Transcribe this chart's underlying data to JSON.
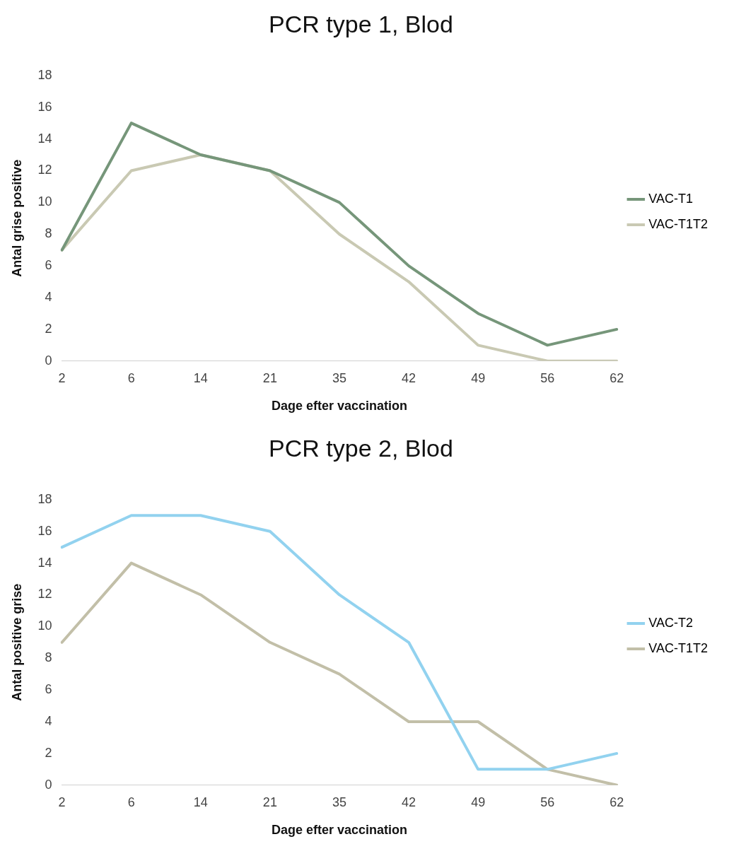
{
  "chart_data": [
    {
      "type": "line",
      "title": "PCR type 1, Blod",
      "xlabel": "Dage efter vaccination",
      "ylabel": "Antal grise positive",
      "categories": [
        "2",
        "6",
        "14",
        "21",
        "35",
        "42",
        "49",
        "56",
        "62"
      ],
      "series": [
        {
          "name": "VAC-T1",
          "color": "#76967a",
          "values": [
            7,
            15,
            13,
            12,
            10,
            6,
            3,
            1,
            2
          ]
        },
        {
          "name": "VAC-T1T2",
          "color": "#c9c9b3",
          "values": [
            7,
            12,
            13,
            12,
            8,
            5,
            1,
            0,
            0
          ]
        }
      ],
      "ylim": [
        0,
        18
      ],
      "yticks": [
        0,
        2,
        4,
        6,
        8,
        10,
        12,
        14,
        16,
        18
      ],
      "legend": "right",
      "marker": "none",
      "line_style": "solid"
    },
    {
      "type": "line",
      "title": "PCR type 2, Blod",
      "xlabel": "Dage efter vaccination",
      "ylabel": "Antal positive grise",
      "categories": [
        "2",
        "6",
        "14",
        "21",
        "35",
        "42",
        "49",
        "56",
        "62"
      ],
      "series": [
        {
          "name": "VAC-T2",
          "color": "#92d2ef",
          "values": [
            15,
            17,
            17,
            16,
            12,
            9,
            1,
            1,
            2
          ]
        },
        {
          "name": "VAC-T1T2",
          "color": "#c2bfa8",
          "values": [
            9,
            14,
            12,
            9,
            7,
            4,
            4,
            1,
            0
          ]
        }
      ],
      "ylim": [
        0,
        18
      ],
      "yticks": [
        0,
        2,
        4,
        6,
        8,
        10,
        12,
        14,
        16,
        18
      ],
      "legend": "right",
      "marker": "none",
      "line_style": "solid"
    }
  ]
}
